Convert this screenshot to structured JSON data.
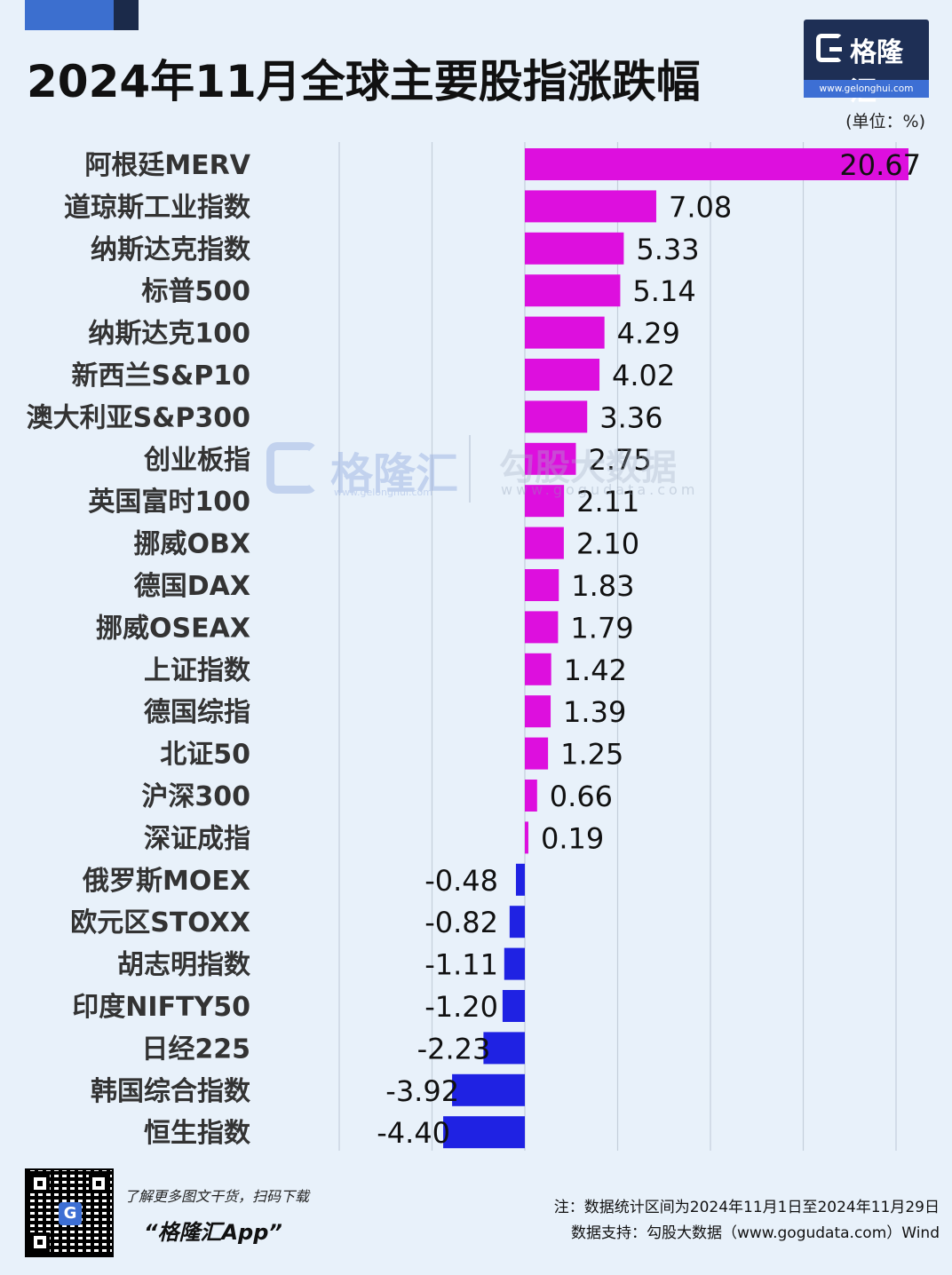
{
  "title": "2024年11月全球主要股指涨跌幅",
  "brand": {
    "name": "格隆汇",
    "url": "www.gelonghui.com"
  },
  "unit": "(单位：%)",
  "watermark": {
    "brand": "格隆汇",
    "url": "www.gelonghui.com",
    "brand2": "勾股大数据",
    "url2": "www.gogudata.com"
  },
  "colors": {
    "positive": "#dd0fde",
    "negative": "#1f22e3",
    "grid": "#c5cfdb",
    "label": "#333333",
    "value": "#111111"
  },
  "chart_data": {
    "type": "bar",
    "orientation": "horizontal",
    "categories": [
      "阿根廷MERV",
      "道琼斯工业指数",
      "纳斯达克指数",
      "标普500",
      "纳斯达克100",
      "新西兰S&P10",
      "澳大利亚S&P300",
      "创业板指",
      "英国富时100",
      "挪威OBX",
      "德国DAX",
      "挪威OSEAX",
      "上证指数",
      "德国综指",
      "北证50",
      "沪深300",
      "深证成指",
      "俄罗斯MOEX",
      "欧元区STOXX",
      "胡志明指数",
      "印度NIFTY50",
      "日经225",
      "韩国综合指数",
      "恒生指数"
    ],
    "values": [
      20.67,
      7.08,
      5.33,
      5.14,
      4.29,
      4.02,
      3.36,
      2.75,
      2.11,
      2.1,
      1.83,
      1.79,
      1.42,
      1.39,
      1.25,
      0.66,
      0.19,
      -0.48,
      -0.82,
      -1.11,
      -1.2,
      -2.23,
      -3.92,
      -4.4
    ],
    "value_labels": [
      "20.67",
      "7.08",
      "5.33",
      "5.14",
      "4.29",
      "4.02",
      "3.36",
      "2.75",
      "2.11",
      "2.10",
      "1.83",
      "1.79",
      "1.42",
      "1.39",
      "1.25",
      "0.66",
      "0.19",
      "-0.48",
      "-0.82",
      "-1.11",
      "-1.20",
      "-2.23",
      "-3.92",
      "-4.40"
    ],
    "xlim": [
      -10,
      15
    ],
    "grid": true,
    "unit": "%"
  },
  "footer": {
    "promo_line1": "了解更多图文干货，扫码下载",
    "promo_line2": "“格隆汇App”",
    "qr_center": "G",
    "note": "注：数据统计区间为2024年11月1日至2024年11月29日",
    "source": "数据支持：勾股大数据（www.gogudata.com）Wind"
  }
}
